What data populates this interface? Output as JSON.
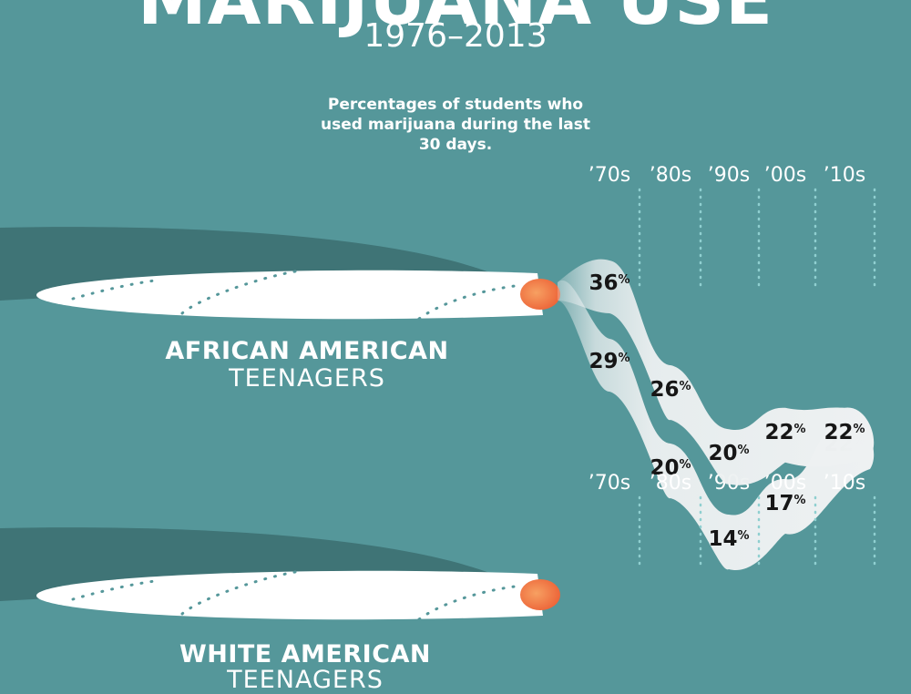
{
  "header": {
    "title": "MARIJUANA USE",
    "subtitle": "1976–2013",
    "note": "Percentages of students who used marijuana during the last 30 days."
  },
  "colors": {
    "background": "#55979a",
    "shadow": "#3f7476",
    "joint": "#ffffff",
    "ember_start": "#f7a062",
    "ember_end": "#ec6136",
    "dots": "#55979a",
    "smoke": "#eef1f2",
    "text_dark": "#161616"
  },
  "chart_data": [
    {
      "type": "line",
      "title": "",
      "group": "AFRICAN AMERICAN",
      "group_sub": "TEENAGERS",
      "x": [
        "’70s",
        "’80s",
        "’90s",
        "’00s",
        "’10s"
      ],
      "values": [
        29,
        20,
        14,
        17,
        22
      ],
      "unit": "%"
    },
    {
      "type": "line",
      "title": "",
      "group": "WHITE AMERICAN",
      "group_sub": "TEENAGERS",
      "x": [
        "’70s",
        "’80s",
        "’90s",
        "’00s",
        "’10s"
      ],
      "values": [
        36,
        26,
        20,
        22,
        22
      ],
      "unit": "%"
    }
  ]
}
